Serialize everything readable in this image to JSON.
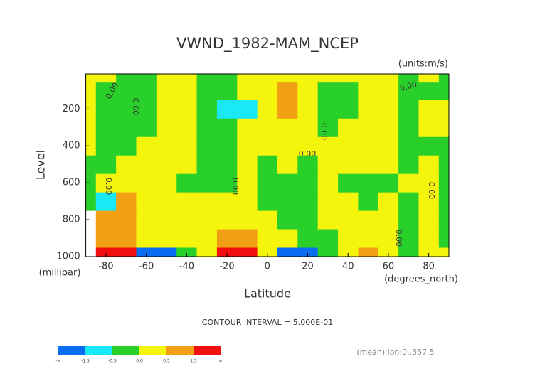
{
  "chart_data": {
    "type": "contour",
    "title": "VWND_1982-MAM_NCEP",
    "units_label": "(units:m/s)",
    "x_label": "Latitude",
    "x_units": "(degrees_north)",
    "y_label": "Level",
    "y_units": "(millibar)",
    "footer": "CONTOUR INTERVAL = 5.000E-01",
    "note": "(mean) lon:0..357.5",
    "xlim": [
      -90,
      90
    ],
    "xticks": [
      -80,
      -60,
      -40,
      -20,
      0,
      20,
      40,
      60,
      80
    ],
    "ylim": [
      1000,
      10
    ],
    "yticks": [
      200,
      400,
      600,
      800,
      1000
    ],
    "x": [
      -90,
      -80,
      -70,
      -60,
      -50,
      -40,
      -30,
      -20,
      -10,
      0,
      10,
      20,
      30,
      40,
      50,
      60,
      70,
      80,
      90
    ],
    "levels": [
      1000,
      900,
      800,
      700,
      600,
      500,
      400,
      300,
      200,
      100,
      10
    ],
    "z": [
      [
        null,
        2,
        2,
        -2,
        -2,
        -0.2,
        0.2,
        2,
        2,
        0.2,
        -2,
        -2,
        -0.2,
        0.2,
        0.8,
        0.2,
        -0.2,
        0.2,
        0.2
      ],
      [
        null,
        0.8,
        0.8,
        0.2,
        0.2,
        0.2,
        0.2,
        0.8,
        0.8,
        0.2,
        0.2,
        -0.2,
        -0.2,
        0.2,
        0.2,
        0.2,
        -0.2,
        0.2,
        -0.2
      ],
      [
        null,
        0.8,
        0.8,
        0.2,
        0.2,
        0.2,
        0.2,
        0.2,
        0.2,
        0.2,
        -0.2,
        -0.2,
        0.2,
        0.2,
        0.2,
        0.2,
        -0.2,
        0.2,
        -0.2
      ],
      [
        -0.2,
        -0.8,
        0.8,
        0.2,
        0.2,
        0.2,
        0.2,
        0.2,
        0.2,
        -0.2,
        -0.2,
        -0.2,
        0.2,
        0.2,
        -0.2,
        0.2,
        -0.2,
        0.2,
        -0.2
      ],
      [
        -0.2,
        0.2,
        0.2,
        0.2,
        0.2,
        -0.2,
        -0.2,
        -0.2,
        0.2,
        -0.2,
        -0.2,
        -0.2,
        0.2,
        -0.2,
        -0.2,
        -0.2,
        0.2,
        0.2,
        -0.2
      ],
      [
        -0.2,
        -0.2,
        0.2,
        0.2,
        0.2,
        0.2,
        -0.2,
        -0.2,
        0.2,
        -0.2,
        0.2,
        -0.2,
        0.2,
        0.2,
        0.2,
        0.2,
        -0.2,
        0.2,
        -0.2
      ],
      [
        0.2,
        -0.2,
        -0.2,
        0.2,
        0.2,
        0.2,
        -0.2,
        -0.2,
        0.2,
        0.2,
        0.2,
        0.2,
        0.2,
        0.2,
        0.2,
        0.2,
        -0.2,
        -0.2,
        -0.2
      ],
      [
        0.2,
        -0.2,
        -0.2,
        -0.2,
        0.2,
        0.2,
        -0.2,
        -0.2,
        0.2,
        0.2,
        0.2,
        0.2,
        -0.2,
        0.2,
        0.2,
        0.2,
        -0.2,
        0.2,
        0.2
      ],
      [
        0.2,
        -0.2,
        -0.2,
        -0.2,
        0.2,
        0.2,
        -0.2,
        -0.8,
        -0.8,
        0.2,
        0.8,
        0.2,
        -0.2,
        -0.2,
        0.2,
        0.2,
        -0.2,
        0.2,
        0.2
      ],
      [
        0.2,
        -0.2,
        -0.2,
        -0.2,
        0.2,
        0.2,
        -0.2,
        -0.2,
        0.2,
        0.2,
        0.8,
        0.2,
        -0.2,
        -0.2,
        0.2,
        0.2,
        -0.2,
        -0.2,
        -0.2
      ],
      [
        0.2,
        0.2,
        -0.2,
        -0.2,
        0.2,
        0.2,
        -0.2,
        -0.2,
        0.2,
        0.2,
        0.2,
        0.2,
        0.2,
        0.2,
        0.2,
        0.2,
        -0.2,
        0.2,
        -0.2
      ]
    ],
    "bounds": [
      -1.5,
      -0.5,
      {
        "value": 0,
        "label": "0.0"
      },
      0.5,
      1.5
    ],
    "bound_ends": [
      "-∞",
      "∞"
    ],
    "colors": [
      "#0a6cf0",
      "#1ae8f4",
      "#2ad02a",
      "#f4f40c",
      "#f0a012",
      "#f01010"
    ],
    "contour_labels": [
      "0.00",
      "0.00",
      "0.00",
      "0.00",
      "0.00",
      "0.00",
      "0.00",
      "0.00",
      "0.00"
    ]
  }
}
